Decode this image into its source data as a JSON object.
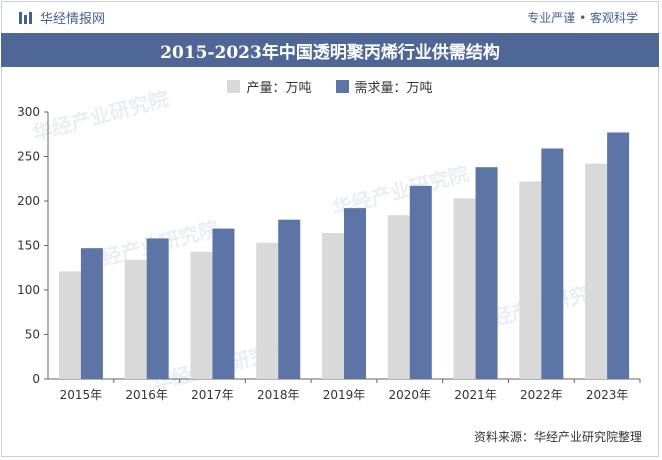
{
  "header": {
    "brand": "华经情报网",
    "slogan": "专业严谨 • 客观科学"
  },
  "footer": {
    "source": "资料来源：华经产业研究院整理",
    "watermark": "华经产业研究院"
  },
  "colors": {
    "title_bg": "#4f6797",
    "production": "#d9d9d9",
    "demand": "#5d75a6"
  },
  "chart_data": {
    "type": "bar",
    "title": "2015-2023年中国透明聚丙烯行业供需结构",
    "categories": [
      "2015年",
      "2016年",
      "2017年",
      "2018年",
      "2019年",
      "2020年",
      "2021年",
      "2022年",
      "2023年"
    ],
    "series": [
      {
        "name": "产量：万吨",
        "values": [
          121,
          134,
          143,
          153,
          164,
          184,
          203,
          222,
          242
        ]
      },
      {
        "name": "需求量：万吨",
        "values": [
          147,
          158,
          169,
          179,
          192,
          217,
          238,
          259,
          277
        ]
      }
    ],
    "ylim": [
      0,
      300
    ],
    "yticks": [
      "0",
      "50",
      "100",
      "150",
      "200",
      "250",
      "300"
    ],
    "grid": false,
    "legend": "top-center"
  }
}
